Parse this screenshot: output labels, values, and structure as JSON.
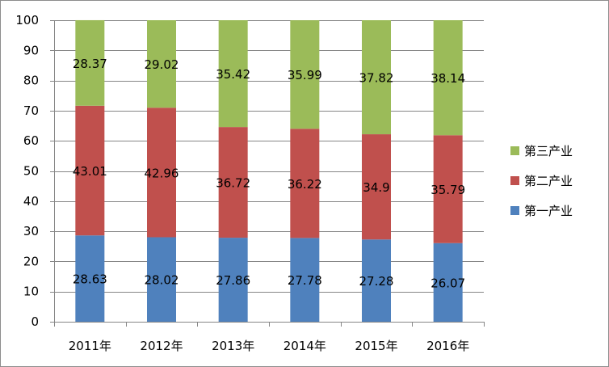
{
  "chart_data": {
    "type": "bar",
    "stacked": true,
    "categories": [
      "2011年",
      "2012年",
      "2013年",
      "2014年",
      "2015年",
      "2016年"
    ],
    "series": [
      {
        "name": "第一产业",
        "values": [
          28.63,
          28.02,
          27.86,
          27.78,
          27.28,
          26.07
        ],
        "color": "#4f81bd"
      },
      {
        "name": "第二产业",
        "values": [
          43.01,
          42.96,
          36.72,
          36.22,
          34.9,
          35.79
        ],
        "color": "#c0504d"
      },
      {
        "name": "第三产业",
        "values": [
          28.37,
          29.02,
          35.42,
          35.99,
          37.82,
          38.14
        ],
        "color": "#9bbb59"
      }
    ],
    "legend_order": [
      "第三产业",
      "第二产业",
      "第一产业"
    ],
    "ylim": [
      0,
      100
    ],
    "yticks": [
      "0",
      "10",
      "20",
      "30",
      "40",
      "50",
      "60",
      "70",
      "80",
      "90",
      "100"
    ],
    "legend_position": "right",
    "grid": true,
    "gridline_color": "#868686",
    "axis_color": "#868686",
    "title": "",
    "xlabel": "",
    "ylabel": ""
  }
}
